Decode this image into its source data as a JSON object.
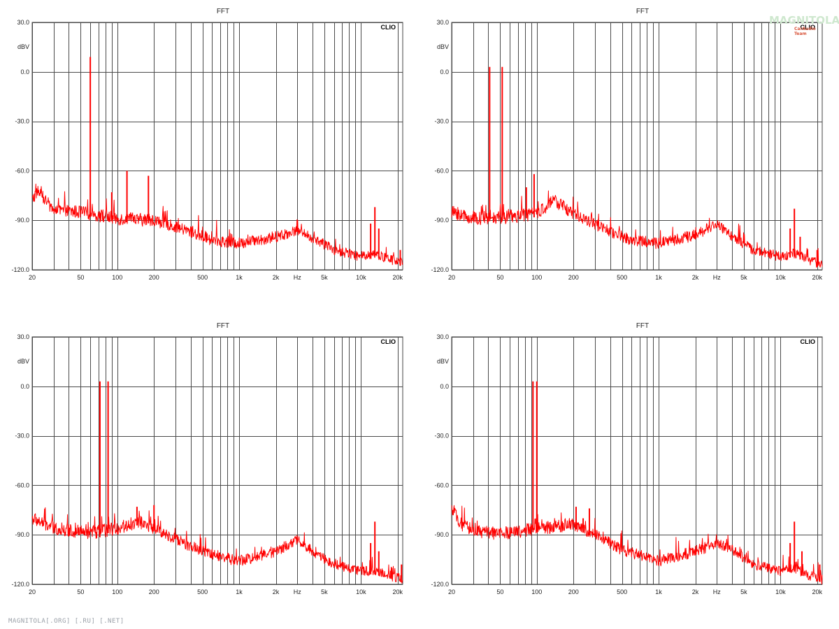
{
  "theme": {
    "trace_color": "#ff0000",
    "grid_color": "#4a4a4a",
    "background": "#ffffff"
  },
  "watermark": {
    "text": "MAGNITOLA[.ORG] [.RU] [.NET]",
    "logo_text": "MAGNITOLA",
    "logo_subtext": "CarAudio Team"
  },
  "chart_data": [
    {
      "type": "line",
      "title": "FFT",
      "brand": "CLIO",
      "ylabel": "dBV",
      "xscale": "log",
      "xlim": [
        20,
        22000
      ],
      "ylim": [
        -120,
        30
      ],
      "y_ticks": [
        "30.0",
        "0.0",
        "-30.0",
        "-60.0",
        "-90.0",
        "-120.0"
      ],
      "x_ticks": [
        "20",
        "50",
        "100",
        "200",
        "500",
        "1k",
        "2k",
        "Hz",
        "5k",
        "10k",
        "20k"
      ],
      "grid": true,
      "series": [
        {
          "peaks": [
            [
              60,
              9
            ],
            [
              120,
              -60
            ],
            [
              180,
              -63
            ],
            [
              90,
              -73
            ]
          ],
          "noise": [
            [
              20,
              -78
            ],
            [
              22,
              -72
            ],
            [
              30,
              -84
            ],
            [
              50,
              -85
            ],
            [
              100,
              -89
            ],
            [
              200,
              -90
            ],
            [
              400,
              -97
            ],
            [
              600,
              -102
            ],
            [
              1000,
              -104
            ],
            [
              2000,
              -100
            ],
            [
              3000,
              -96
            ],
            [
              4000,
              -101
            ],
            [
              6000,
              -108
            ],
            [
              10000,
              -112
            ],
            [
              13000,
              -110
            ],
            [
              16000,
              -113
            ],
            [
              22000,
              -116
            ]
          ],
          "spurs": [
            [
              13000,
              -82
            ],
            [
              12000,
              -92
            ],
            [
              14000,
              -95
            ],
            [
              21000,
              -108
            ]
          ]
        }
      ]
    },
    {
      "type": "line",
      "title": "FFT",
      "brand": "CLIO",
      "ylabel": "dBV",
      "xscale": "log",
      "xlim": [
        20,
        22000
      ],
      "ylim": [
        -120,
        30
      ],
      "y_ticks": [
        "30.0",
        "0.0",
        "-30.0",
        "-60.0",
        "-90.0",
        "-120.0"
      ],
      "x_ticks": [
        "20",
        "50",
        "100",
        "200",
        "500",
        "1k",
        "2k",
        "Hz",
        "5k",
        "10k",
        "20k"
      ],
      "grid": true,
      "series": [
        {
          "peaks": [
            [
              41,
              3
            ],
            [
              52,
              3
            ],
            [
              95,
              -62
            ],
            [
              82,
              -70
            ]
          ],
          "noise": [
            [
              20,
              -85
            ],
            [
              30,
              -89
            ],
            [
              60,
              -88
            ],
            [
              100,
              -86
            ],
            [
              140,
              -78
            ],
            [
              200,
              -86
            ],
            [
              400,
              -97
            ],
            [
              600,
              -102
            ],
            [
              1000,
              -104
            ],
            [
              2000,
              -99
            ],
            [
              3000,
              -92
            ],
            [
              4000,
              -100
            ],
            [
              6000,
              -108
            ],
            [
              10000,
              -112
            ],
            [
              13000,
              -110
            ],
            [
              16000,
              -113
            ],
            [
              22000,
              -117
            ]
          ],
          "spurs": [
            [
              13000,
              -83
            ],
            [
              12000,
              -95
            ],
            [
              14500,
              -100
            ],
            [
              20000,
              -108
            ]
          ]
        }
      ]
    },
    {
      "type": "line",
      "title": "FFT",
      "brand": "CLIO",
      "ylabel": "dBV",
      "xscale": "log",
      "xlim": [
        20,
        22000
      ],
      "ylim": [
        -120,
        30
      ],
      "y_ticks": [
        "30.0",
        "0.0",
        "-30.0",
        "-60.0",
        "-90.0",
        "-120.0"
      ],
      "x_ticks": [
        "20",
        "50",
        "100",
        "200",
        "500",
        "1k",
        "2k",
        "Hz",
        "5k",
        "10k",
        "20k"
      ],
      "grid": true,
      "series": [
        {
          "peaks": [
            [
              72,
              3
            ],
            [
              84,
              3
            ],
            [
              145,
              -73
            ],
            [
              200,
              -72
            ]
          ],
          "noise": [
            [
              20,
              -80
            ],
            [
              30,
              -86
            ],
            [
              60,
              -89
            ],
            [
              100,
              -86
            ],
            [
              150,
              -82
            ],
            [
              200,
              -86
            ],
            [
              400,
              -97
            ],
            [
              600,
              -102
            ],
            [
              1000,
              -106
            ],
            [
              2000,
              -100
            ],
            [
              3000,
              -93
            ],
            [
              4000,
              -100
            ],
            [
              6000,
              -108
            ],
            [
              10000,
              -112
            ],
            [
              13000,
              -112
            ],
            [
              16000,
              -114
            ],
            [
              22000,
              -117
            ]
          ],
          "spurs": [
            [
              13000,
              -82
            ],
            [
              12000,
              -95
            ],
            [
              14000,
              -100
            ],
            [
              21500,
              -108
            ]
          ]
        }
      ]
    },
    {
      "type": "line",
      "title": "FFT",
      "brand": "CLIO",
      "ylabel": "dBV",
      "xscale": "log",
      "xlim": [
        20,
        22000
      ],
      "ylim": [
        -120,
        30
      ],
      "y_ticks": [
        "30.0",
        "0.0",
        "-30.0",
        "-60.0",
        "-90.0",
        "-120.0"
      ],
      "x_ticks": [
        "20",
        "50",
        "100",
        "200",
        "500",
        "1k",
        "2k",
        "Hz",
        "5k",
        "10k",
        "20k"
      ],
      "grid": true,
      "series": [
        {
          "peaks": [
            [
              93,
              3
            ],
            [
              100,
              3
            ],
            [
              210,
              -73
            ],
            [
              270,
              -74
            ],
            [
              240,
              -80
            ]
          ],
          "noise": [
            [
              20,
              -75
            ],
            [
              25,
              -85
            ],
            [
              40,
              -89
            ],
            [
              60,
              -89
            ],
            [
              100,
              -86
            ],
            [
              200,
              -84
            ],
            [
              300,
              -90
            ],
            [
              500,
              -99
            ],
            [
              1000,
              -106
            ],
            [
              2000,
              -100
            ],
            [
              3000,
              -95
            ],
            [
              4000,
              -99
            ],
            [
              6000,
              -108
            ],
            [
              10000,
              -112
            ],
            [
              13000,
              -110
            ],
            [
              16000,
              -114
            ],
            [
              22000,
              -117
            ]
          ],
          "spurs": [
            [
              13000,
              -82
            ],
            [
              12000,
              -95
            ],
            [
              15000,
              -100
            ],
            [
              21000,
              -108
            ]
          ]
        }
      ]
    }
  ]
}
